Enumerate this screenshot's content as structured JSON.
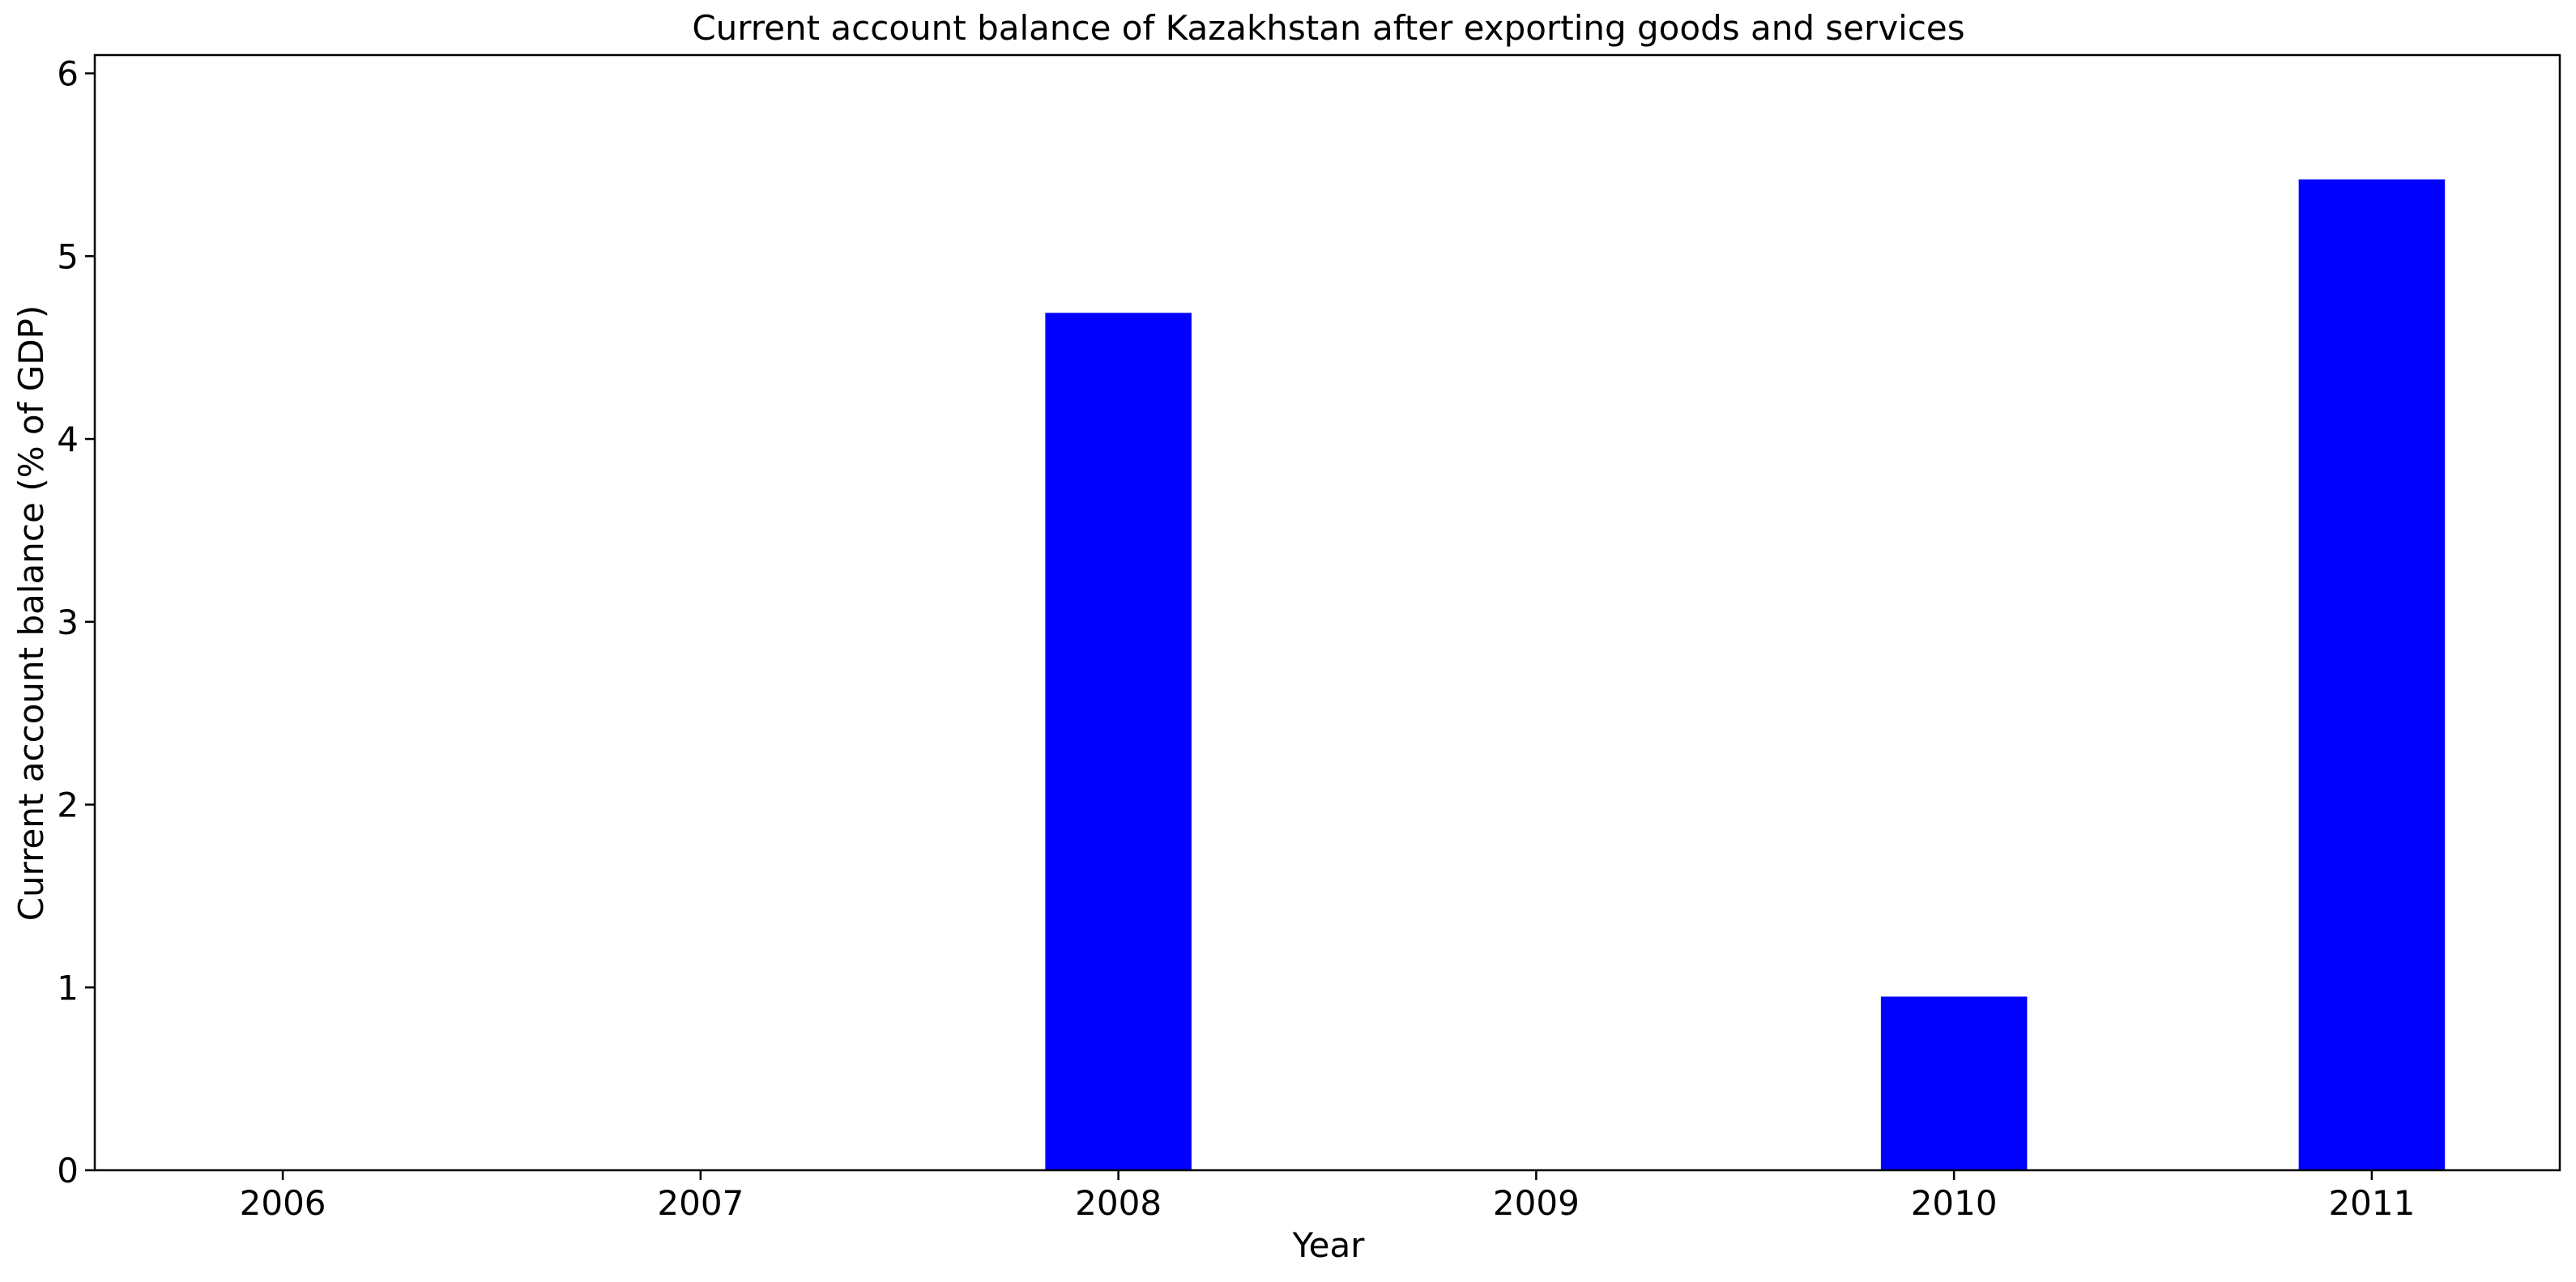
{
  "chart_data": {
    "type": "bar",
    "title": "Current account balance of Kazakhstan after exporting goods and services",
    "xlabel": "Year",
    "ylabel": "Current account balance (% of GDP)",
    "categories": [
      "2006",
      "2007",
      "2008",
      "2009",
      "2010",
      "2011"
    ],
    "values": [
      0,
      0,
      4.69,
      0,
      0.95,
      5.42
    ],
    "ylim": [
      0,
      6.1
    ],
    "yticks": [
      "0",
      "1",
      "2",
      "3",
      "4",
      "5",
      "6"
    ],
    "bar_color": "#0000ff",
    "grid": false,
    "legend": "none"
  }
}
